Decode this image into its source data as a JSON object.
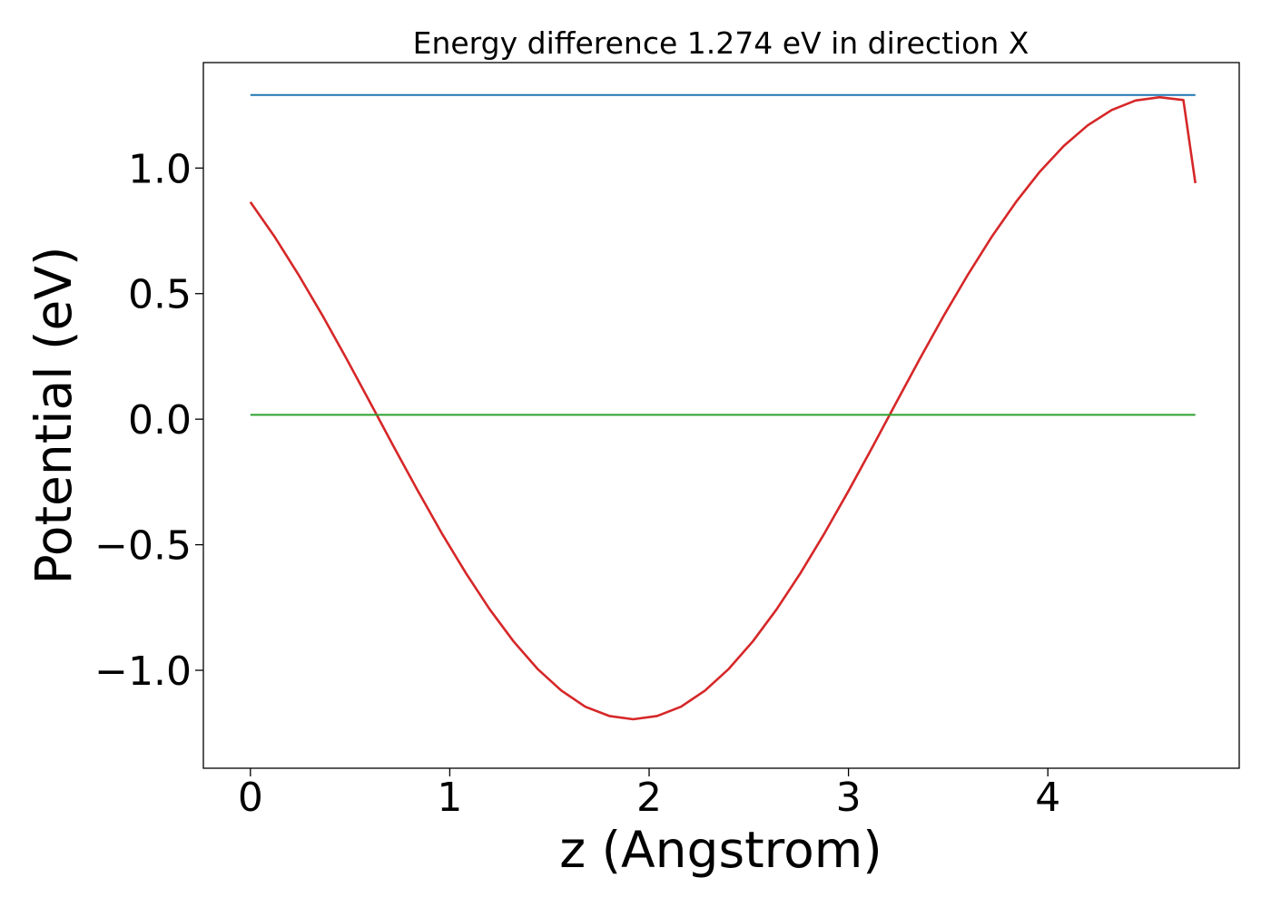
{
  "chart_data": {
    "type": "line",
    "title": "Energy difference 1.274 eV in direction X",
    "xlabel": "z (Angstrom)",
    "ylabel": "Potential (eV)",
    "xlim": [
      -0.236,
      4.96
    ],
    "ylim": [
      -1.39,
      1.42
    ],
    "xticks": [
      0,
      1,
      2,
      3,
      4
    ],
    "xtick_labels": [
      "0",
      "1",
      "2",
      "3",
      "4"
    ],
    "yticks": [
      1.0,
      0.5,
      0.0,
      -0.5,
      -1.0
    ],
    "ytick_labels": [
      "1.0",
      "0.5",
      "0.0",
      "−0.5",
      "−1.0"
    ],
    "grid": false,
    "series": [
      {
        "color": "#d62728",
        "x": [
          0,
          0.12,
          0.24,
          0.36,
          0.48,
          0.6,
          0.72,
          0.84,
          0.96,
          1.08,
          1.2,
          1.32,
          1.44,
          1.56,
          1.68,
          1.8,
          1.92,
          2.04,
          2.16,
          2.28,
          2.4,
          2.52,
          2.64,
          2.76,
          2.88,
          3.0,
          3.12,
          3.24,
          3.36,
          3.48,
          3.6,
          3.72,
          3.84,
          3.96,
          4.08,
          4.2,
          4.32,
          4.44,
          4.56,
          4.68,
          4.74
        ],
        "y": [
          0.865,
          0.728,
          0.577,
          0.415,
          0.244,
          0.067,
          -0.111,
          -0.286,
          -0.454,
          -0.612,
          -0.757,
          -0.885,
          -0.994,
          -1.081,
          -1.145,
          -1.182,
          -1.195,
          -1.182,
          -1.145,
          -1.081,
          -0.994,
          -0.885,
          -0.757,
          -0.612,
          -0.454,
          -0.286,
          -0.111,
          0.067,
          0.244,
          0.415,
          0.577,
          0.728,
          0.865,
          0.986,
          1.088,
          1.17,
          1.231,
          1.269,
          1.282,
          1.271,
          0.94
        ]
      },
      {
        "color": "#1f77b4",
        "x": [
          0,
          4.74
        ],
        "y": [
          1.291,
          1.291
        ]
      },
      {
        "color": "#2ca02c",
        "x": [
          0,
          4.74
        ],
        "y": [
          0.017,
          0.017
        ]
      }
    ]
  }
}
